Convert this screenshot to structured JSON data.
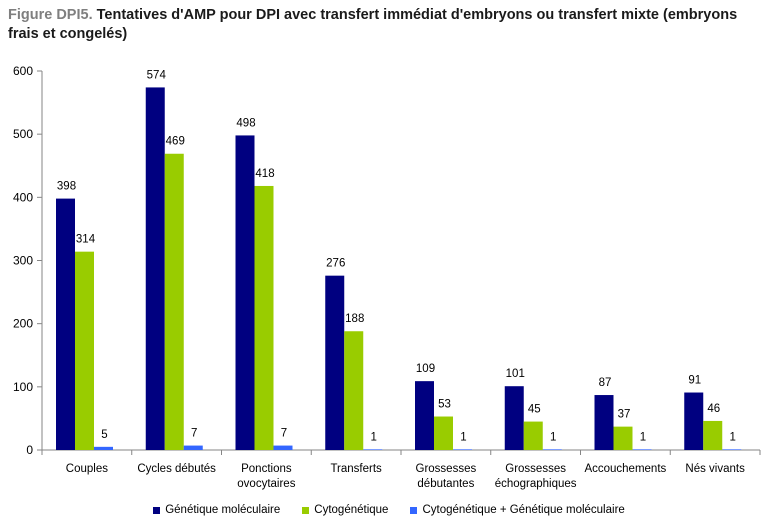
{
  "header": {
    "prefix": "Figure DPI5.",
    "text": " Tentatives d'AMP pour DPI avec transfert immédiat d'embryons ou transfert mixte (embryons frais et congelés)"
  },
  "chart_data": {
    "type": "bar",
    "categories": [
      [
        "Couples"
      ],
      [
        "Cycles débutés"
      ],
      [
        "Ponctions",
        "ovocytaires"
      ],
      [
        "Transferts"
      ],
      [
        "Grossesses",
        "débutantes"
      ],
      [
        "Grossesses",
        "échographiques"
      ],
      [
        "Accouchements"
      ],
      [
        "Nés vivants"
      ]
    ],
    "series": [
      {
        "name": "Génétique moléculaire",
        "color": "#000080",
        "values": [
          398,
          574,
          498,
          276,
          109,
          101,
          87,
          91
        ]
      },
      {
        "name": "Cytogénétique",
        "color": "#99cc00",
        "values": [
          314,
          469,
          418,
          188,
          53,
          45,
          37,
          46
        ]
      },
      {
        "name": "Cytogénétique + Génétique moléculaire",
        "color": "#3366ff",
        "values": [
          5,
          7,
          7,
          1,
          1,
          1,
          1,
          1
        ]
      }
    ],
    "ylim": [
      0,
      600
    ],
    "yticks": [
      0,
      100,
      200,
      300,
      400,
      500,
      600
    ],
    "grid": false,
    "legend_position": "bottom"
  }
}
